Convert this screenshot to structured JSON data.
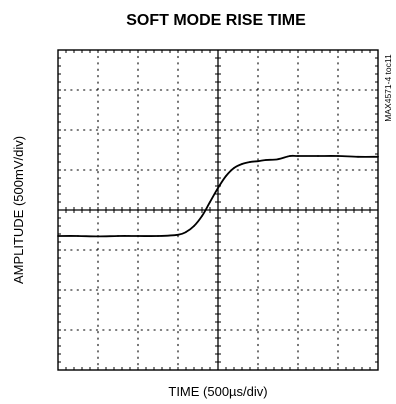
{
  "chart_data": {
    "type": "line",
    "title": "SOFT MODE RISE TIME",
    "xlabel": "TIME (500µs/div)",
    "ylabel": "AMPLITUDE (500mV/div)",
    "figure_code": "MAX4571-4 toc11",
    "grid": true,
    "x_divisions": 8,
    "y_divisions": 8,
    "xlim": [
      0,
      8
    ],
    "ylim": [
      -4,
      4
    ],
    "series": [
      {
        "x": [
          0,
          0.5,
          1.0,
          1.5,
          2.0,
          2.5,
          3.0,
          3.2,
          3.4,
          3.6,
          3.8,
          4.0,
          4.2,
          4.4,
          4.6,
          4.8,
          5.0,
          5.2,
          5.5,
          5.8,
          6.0,
          6.5,
          7.0,
          7.5,
          8.0
        ],
        "values": [
          -0.65,
          -0.65,
          -0.66,
          -0.65,
          -0.65,
          -0.65,
          -0.62,
          -0.55,
          -0.4,
          -0.15,
          0.2,
          0.55,
          0.85,
          1.05,
          1.15,
          1.2,
          1.22,
          1.25,
          1.27,
          1.35,
          1.35,
          1.35,
          1.35,
          1.33,
          1.33
        ]
      }
    ]
  }
}
